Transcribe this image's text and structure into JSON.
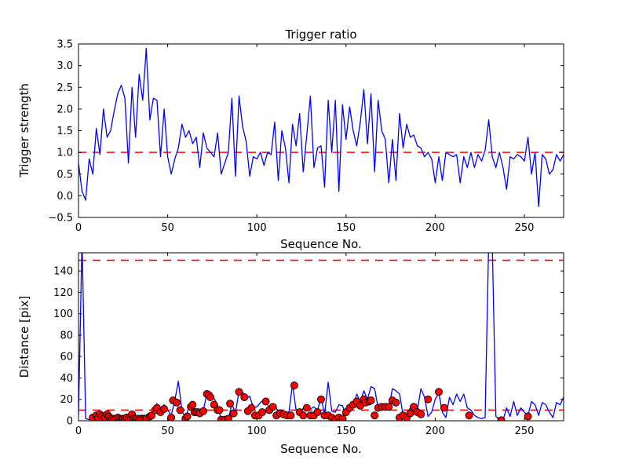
{
  "figure": {
    "background": "#ffffff",
    "frame_color": "#000000"
  },
  "chart_data": [
    {
      "type": "line",
      "title": "Trigger ratio",
      "xlabel": "Sequence No.",
      "ylabel": "Trigger strength",
      "xlim": [
        0,
        272
      ],
      "ylim": [
        -0.5,
        3.5
      ],
      "xticks": [
        0,
        50,
        100,
        150,
        200,
        250
      ],
      "yticks": [
        -0.5,
        0.0,
        0.5,
        1.0,
        1.5,
        2.0,
        2.5,
        3.0,
        3.5
      ],
      "ytick_labels": [
        "−0.5",
        "0.0",
        "0.5",
        "1.0",
        "1.5",
        "2.0",
        "2.5",
        "3.0",
        "3.5"
      ],
      "grid": false,
      "legend": null,
      "line_color": "#0000ff",
      "hlines": [
        {
          "y": 1.0,
          "color": "#ff0000",
          "style": "dashed"
        }
      ],
      "x_start": 0,
      "x_step": 2,
      "values": [
        0.75,
        0.1,
        -0.1,
        0.85,
        0.5,
        1.55,
        0.95,
        2.0,
        1.35,
        1.5,
        1.95,
        2.35,
        2.55,
        2.25,
        0.75,
        2.5,
        1.35,
        2.8,
        2.2,
        3.4,
        1.75,
        2.25,
        2.2,
        0.9,
        2.0,
        0.9,
        0.5,
        0.85,
        1.1,
        1.65,
        1.35,
        1.5,
        1.2,
        1.35,
        0.65,
        1.45,
        1.1,
        1.0,
        0.9,
        1.45,
        0.5,
        0.75,
        1.0,
        2.25,
        0.45,
        2.3,
        1.6,
        1.25,
        0.45,
        0.9,
        0.85,
        1.0,
        0.7,
        1.0,
        0.95,
        1.7,
        0.35,
        1.5,
        1.1,
        0.3,
        1.65,
        1.15,
        1.9,
        0.55,
        1.4,
        2.3,
        0.65,
        1.1,
        1.15,
        0.2,
        2.2,
        1.0,
        2.2,
        0.1,
        2.1,
        1.3,
        2.05,
        1.5,
        1.15,
        1.7,
        2.45,
        1.2,
        2.35,
        0.55,
        2.2,
        1.5,
        1.3,
        0.3,
        1.3,
        0.35,
        1.9,
        1.1,
        1.65,
        1.35,
        1.4,
        1.15,
        1.1,
        0.9,
        1.0,
        0.85,
        0.3,
        0.9,
        0.35,
        1.0,
        0.95,
        0.9,
        0.95,
        0.3,
        0.9,
        0.65,
        1.0,
        0.65,
        0.95,
        0.8,
        1.05,
        1.75,
        0.9,
        0.65,
        1.0,
        0.65,
        0.15,
        0.9,
        0.85,
        0.95,
        0.9,
        0.8,
        1.35,
        0.5,
        1.0,
        -0.25,
        0.95,
        0.85,
        0.5,
        0.6,
        0.95,
        0.8,
        0.95
      ]
    },
    {
      "type": "line+scatter",
      "title": "",
      "xlabel": "Sequence No.",
      "ylabel": "Distance [pix]",
      "xlim": [
        0,
        272
      ],
      "ylim": [
        0,
        157
      ],
      "xticks": [
        0,
        50,
        100,
        150,
        200,
        250
      ],
      "yticks": [
        0,
        20,
        40,
        60,
        80,
        100,
        120,
        140
      ],
      "ytick_labels": [
        "0",
        "20",
        "40",
        "60",
        "80",
        "100",
        "120",
        "140"
      ],
      "grid": false,
      "legend": null,
      "line_color": "#0000ff",
      "hlines": [
        {
          "y": 150,
          "color": "#ff0000",
          "style": "dashed"
        },
        {
          "y": 10,
          "color": "#ff0000",
          "style": "dashed"
        }
      ],
      "x_start": 0,
      "x_step": 2,
      "values": [
        5,
        170,
        2,
        1,
        2,
        6,
        4,
        2,
        5,
        3,
        2,
        2,
        3,
        2,
        4,
        3,
        2,
        3,
        2,
        3,
        5,
        8,
        16,
        8,
        15,
        10,
        5,
        19,
        37,
        9,
        3,
        13,
        15,
        8,
        7,
        10,
        25,
        22,
        21,
        15,
        1,
        2,
        1,
        16,
        7,
        28,
        27,
        20,
        23,
        12,
        13,
        17,
        20,
        15,
        10,
        15,
        8,
        7,
        6,
        8,
        34,
        10,
        6,
        12,
        10,
        11,
        13,
        10,
        22,
        6,
        36,
        9,
        8,
        15,
        14,
        5,
        8,
        12,
        25,
        18,
        28,
        20,
        32,
        30,
        12,
        14,
        10,
        12,
        30,
        28,
        25,
        5,
        6,
        12,
        16,
        10,
        30,
        22,
        4,
        8,
        20,
        26,
        8,
        3,
        22,
        15,
        25,
        18,
        25,
        12,
        10,
        5,
        3,
        2,
        3,
        170,
        165,
        4,
        1,
        0.5,
        12,
        4,
        18,
        5,
        12,
        8,
        5,
        18,
        15,
        5,
        17,
        15,
        8,
        3,
        17,
        15,
        22
      ],
      "scatter": {
        "color": "#ff0000",
        "edge_color": "#000000",
        "points": [
          [
            8,
            3
          ],
          [
            10,
            5
          ],
          [
            11,
            3
          ],
          [
            12,
            6
          ],
          [
            13,
            4
          ],
          [
            14,
            2
          ],
          [
            15,
            3
          ],
          [
            16,
            6
          ],
          [
            17,
            4
          ],
          [
            18,
            2
          ],
          [
            19,
            2
          ],
          [
            20,
            1
          ],
          [
            21,
            2
          ],
          [
            22,
            3
          ],
          [
            23,
            2
          ],
          [
            24,
            1
          ],
          [
            25,
            2
          ],
          [
            26,
            2
          ],
          [
            27,
            3
          ],
          [
            28,
            2
          ],
          [
            29,
            1
          ],
          [
            30,
            6
          ],
          [
            31,
            2
          ],
          [
            32,
            2
          ],
          [
            33,
            2
          ],
          [
            34,
            1
          ],
          [
            35,
            2
          ],
          [
            36,
            2
          ],
          [
            37,
            2
          ],
          [
            38,
            2
          ],
          [
            40,
            4
          ],
          [
            41,
            5
          ],
          [
            43,
            10
          ],
          [
            44,
            12
          ],
          [
            46,
            8
          ],
          [
            48,
            11
          ],
          [
            52,
            3
          ],
          [
            53,
            19
          ],
          [
            55,
            17
          ],
          [
            57,
            10
          ],
          [
            60,
            2
          ],
          [
            61,
            4
          ],
          [
            63,
            13
          ],
          [
            64,
            15
          ],
          [
            65,
            8
          ],
          [
            66,
            8
          ],
          [
            67,
            8
          ],
          [
            68,
            7
          ],
          [
            70,
            9
          ],
          [
            72,
            25
          ],
          [
            73,
            24
          ],
          [
            74,
            22
          ],
          [
            76,
            15
          ],
          [
            78,
            10
          ],
          [
            79,
            10
          ],
          [
            80,
            1
          ],
          [
            82,
            1
          ],
          [
            84,
            2
          ],
          [
            85,
            16
          ],
          [
            87,
            7
          ],
          [
            90,
            27
          ],
          [
            93,
            22
          ],
          [
            95,
            9
          ],
          [
            97,
            12
          ],
          [
            99,
            5
          ],
          [
            101,
            5
          ],
          [
            103,
            8
          ],
          [
            105,
            18
          ],
          [
            107,
            10
          ],
          [
            109,
            13
          ],
          [
            111,
            5
          ],
          [
            113,
            7
          ],
          [
            115,
            6
          ],
          [
            117,
            5
          ],
          [
            119,
            5
          ],
          [
            121,
            33
          ],
          [
            124,
            8
          ],
          [
            126,
            5
          ],
          [
            128,
            12
          ],
          [
            130,
            5
          ],
          [
            132,
            5
          ],
          [
            134,
            8
          ],
          [
            136,
            20
          ],
          [
            138,
            5
          ],
          [
            140,
            5
          ],
          [
            142,
            3
          ],
          [
            144,
            1
          ],
          [
            146,
            3
          ],
          [
            148,
            2
          ],
          [
            150,
            8
          ],
          [
            152,
            12
          ],
          [
            154,
            15
          ],
          [
            156,
            18
          ],
          [
            158,
            14
          ],
          [
            160,
            20
          ],
          [
            161,
            17
          ],
          [
            163,
            18
          ],
          [
            164,
            19
          ],
          [
            166,
            5
          ],
          [
            168,
            12
          ],
          [
            170,
            13
          ],
          [
            172,
            13
          ],
          [
            174,
            13
          ],
          [
            176,
            19
          ],
          [
            178,
            17
          ],
          [
            180,
            3
          ],
          [
            182,
            5
          ],
          [
            184,
            3
          ],
          [
            186,
            7
          ],
          [
            188,
            13
          ],
          [
            190,
            8
          ],
          [
            192,
            6
          ],
          [
            196,
            20
          ],
          [
            202,
            27
          ],
          [
            205,
            12
          ],
          [
            219,
            5
          ],
          [
            237,
            0.5
          ],
          [
            252,
            4
          ]
        ]
      }
    }
  ]
}
